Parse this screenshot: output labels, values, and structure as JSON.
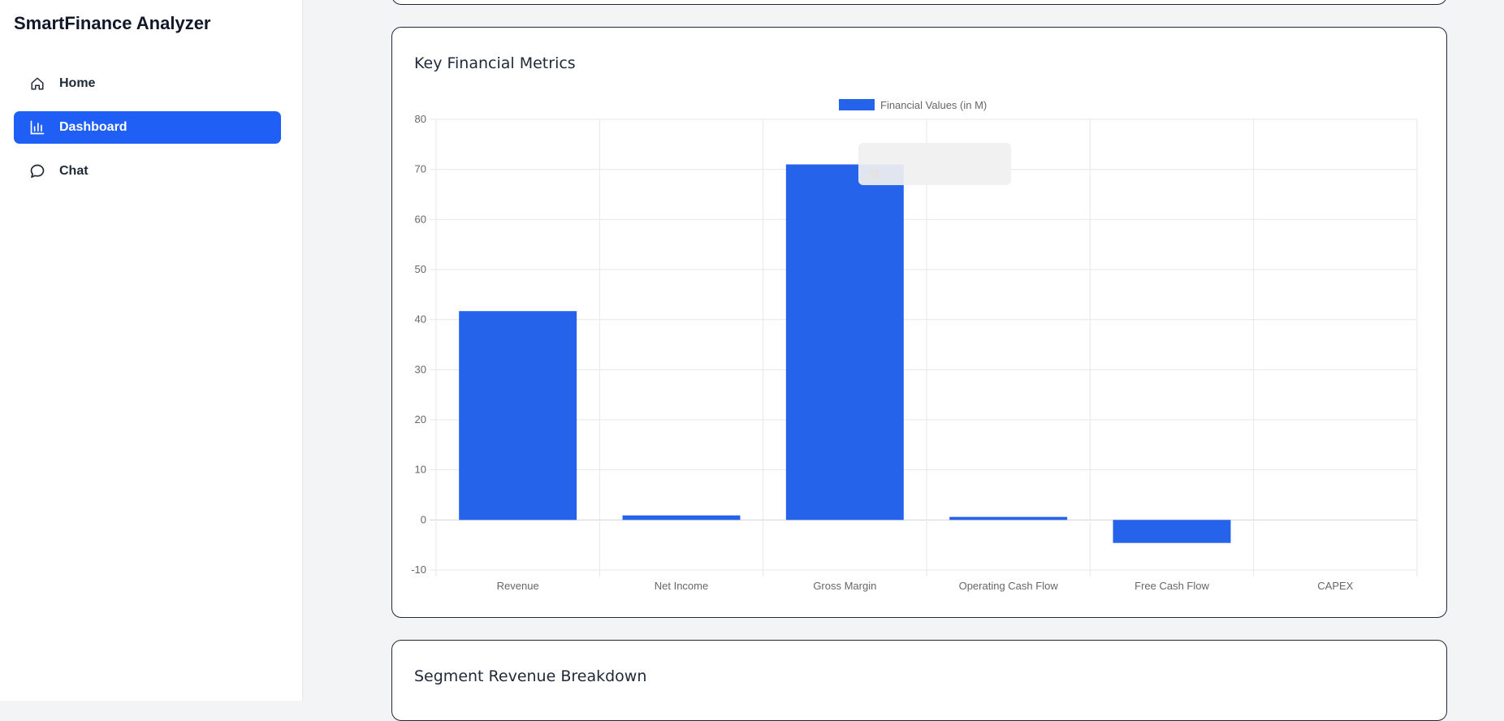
{
  "app": {
    "title": "SmartFinance Analyzer"
  },
  "sidebar": {
    "items": [
      {
        "label": "Home",
        "icon": "home-icon",
        "active": false
      },
      {
        "label": "Dashboard",
        "icon": "bar-chart-icon",
        "active": true
      },
      {
        "label": "Chat",
        "icon": "chat-bubble-icon",
        "active": false
      }
    ]
  },
  "main": {
    "metrics_card": {
      "title": "Key Financial Metrics"
    },
    "segment_card": {
      "title": "Segment Revenue Breakdown"
    }
  },
  "colors": {
    "accent": "#1f5ff5",
    "bar": "#2563eb",
    "background": "#f3f4f6"
  },
  "chart_data": {
    "type": "bar",
    "categories": [
      "Revenue",
      "Net Income",
      "Gross Margin",
      "Operating Cash Flow",
      "Free Cash Flow",
      "CAPEX"
    ],
    "series": [
      {
        "name": "Financial Values (in M)",
        "values": [
          41.7,
          0.9,
          71.0,
          0.6,
          -4.6,
          0
        ]
      }
    ],
    "title": "",
    "xlabel": "",
    "ylabel": "",
    "ylim": [
      -10,
      80
    ],
    "yticks": [
      80,
      70,
      60,
      50,
      40,
      30,
      20,
      10,
      0,
      -10
    ],
    "grid": true,
    "legend": "top-center"
  }
}
